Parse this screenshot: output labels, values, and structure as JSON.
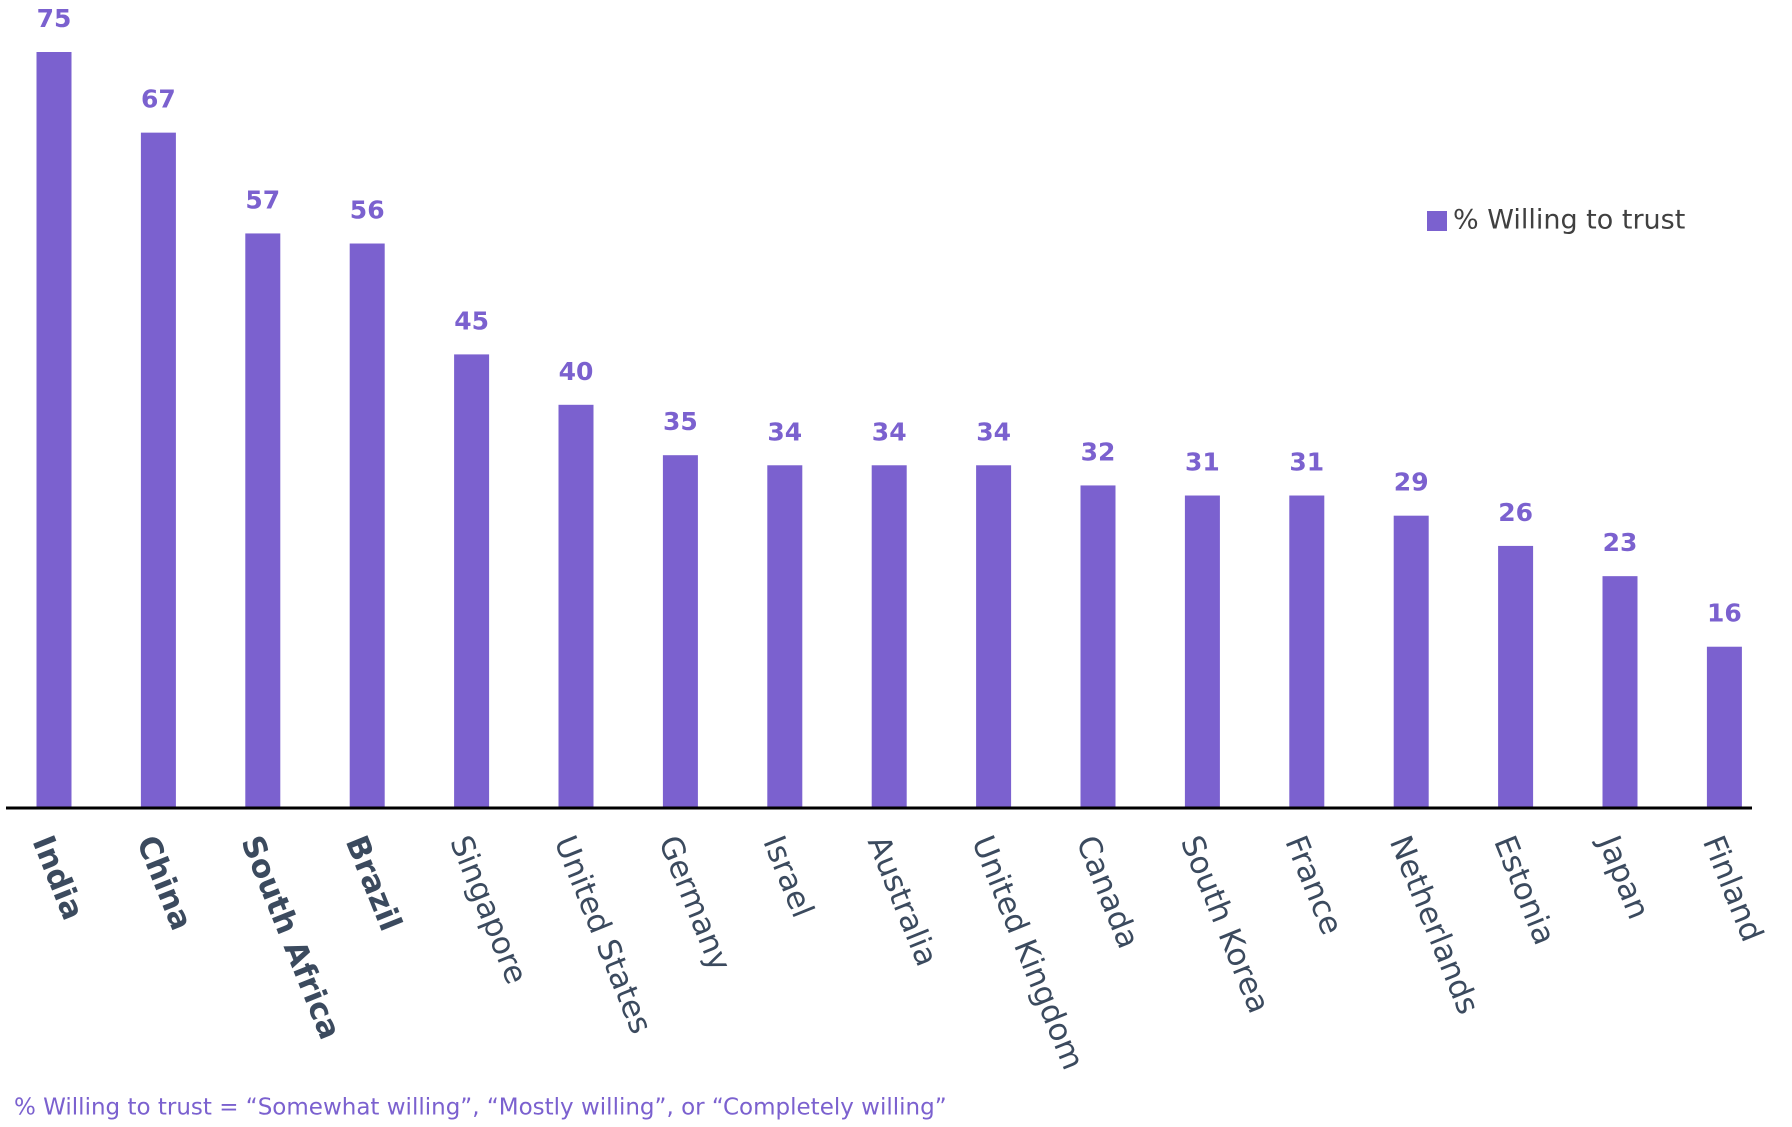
{
  "chart_data": {
    "type": "bar",
    "categories": [
      "India",
      "China",
      "South Africa",
      "Brazil",
      "Singapore",
      "United States",
      "Germany",
      "Israel",
      "Australia",
      "United Kingdom",
      "Canada",
      "South Korea",
      "France",
      "Netherlands",
      "Estonia",
      "Japan",
      "Finland"
    ],
    "bold": [
      true,
      true,
      true,
      true,
      false,
      false,
      false,
      false,
      false,
      false,
      false,
      false,
      false,
      false,
      false,
      false,
      false
    ],
    "series": [
      {
        "name": "% Willing to trust",
        "color": "#7b61cf",
        "values": [
          75,
          67,
          57,
          56,
          45,
          40,
          35,
          34,
          34,
          34,
          32,
          31,
          31,
          29,
          26,
          23,
          16
        ]
      }
    ],
    "legend": "upper right",
    "footnote": "% Willing to trust = “Somewhat willing”, “Mostly willing”, or “Completely willing”"
  }
}
